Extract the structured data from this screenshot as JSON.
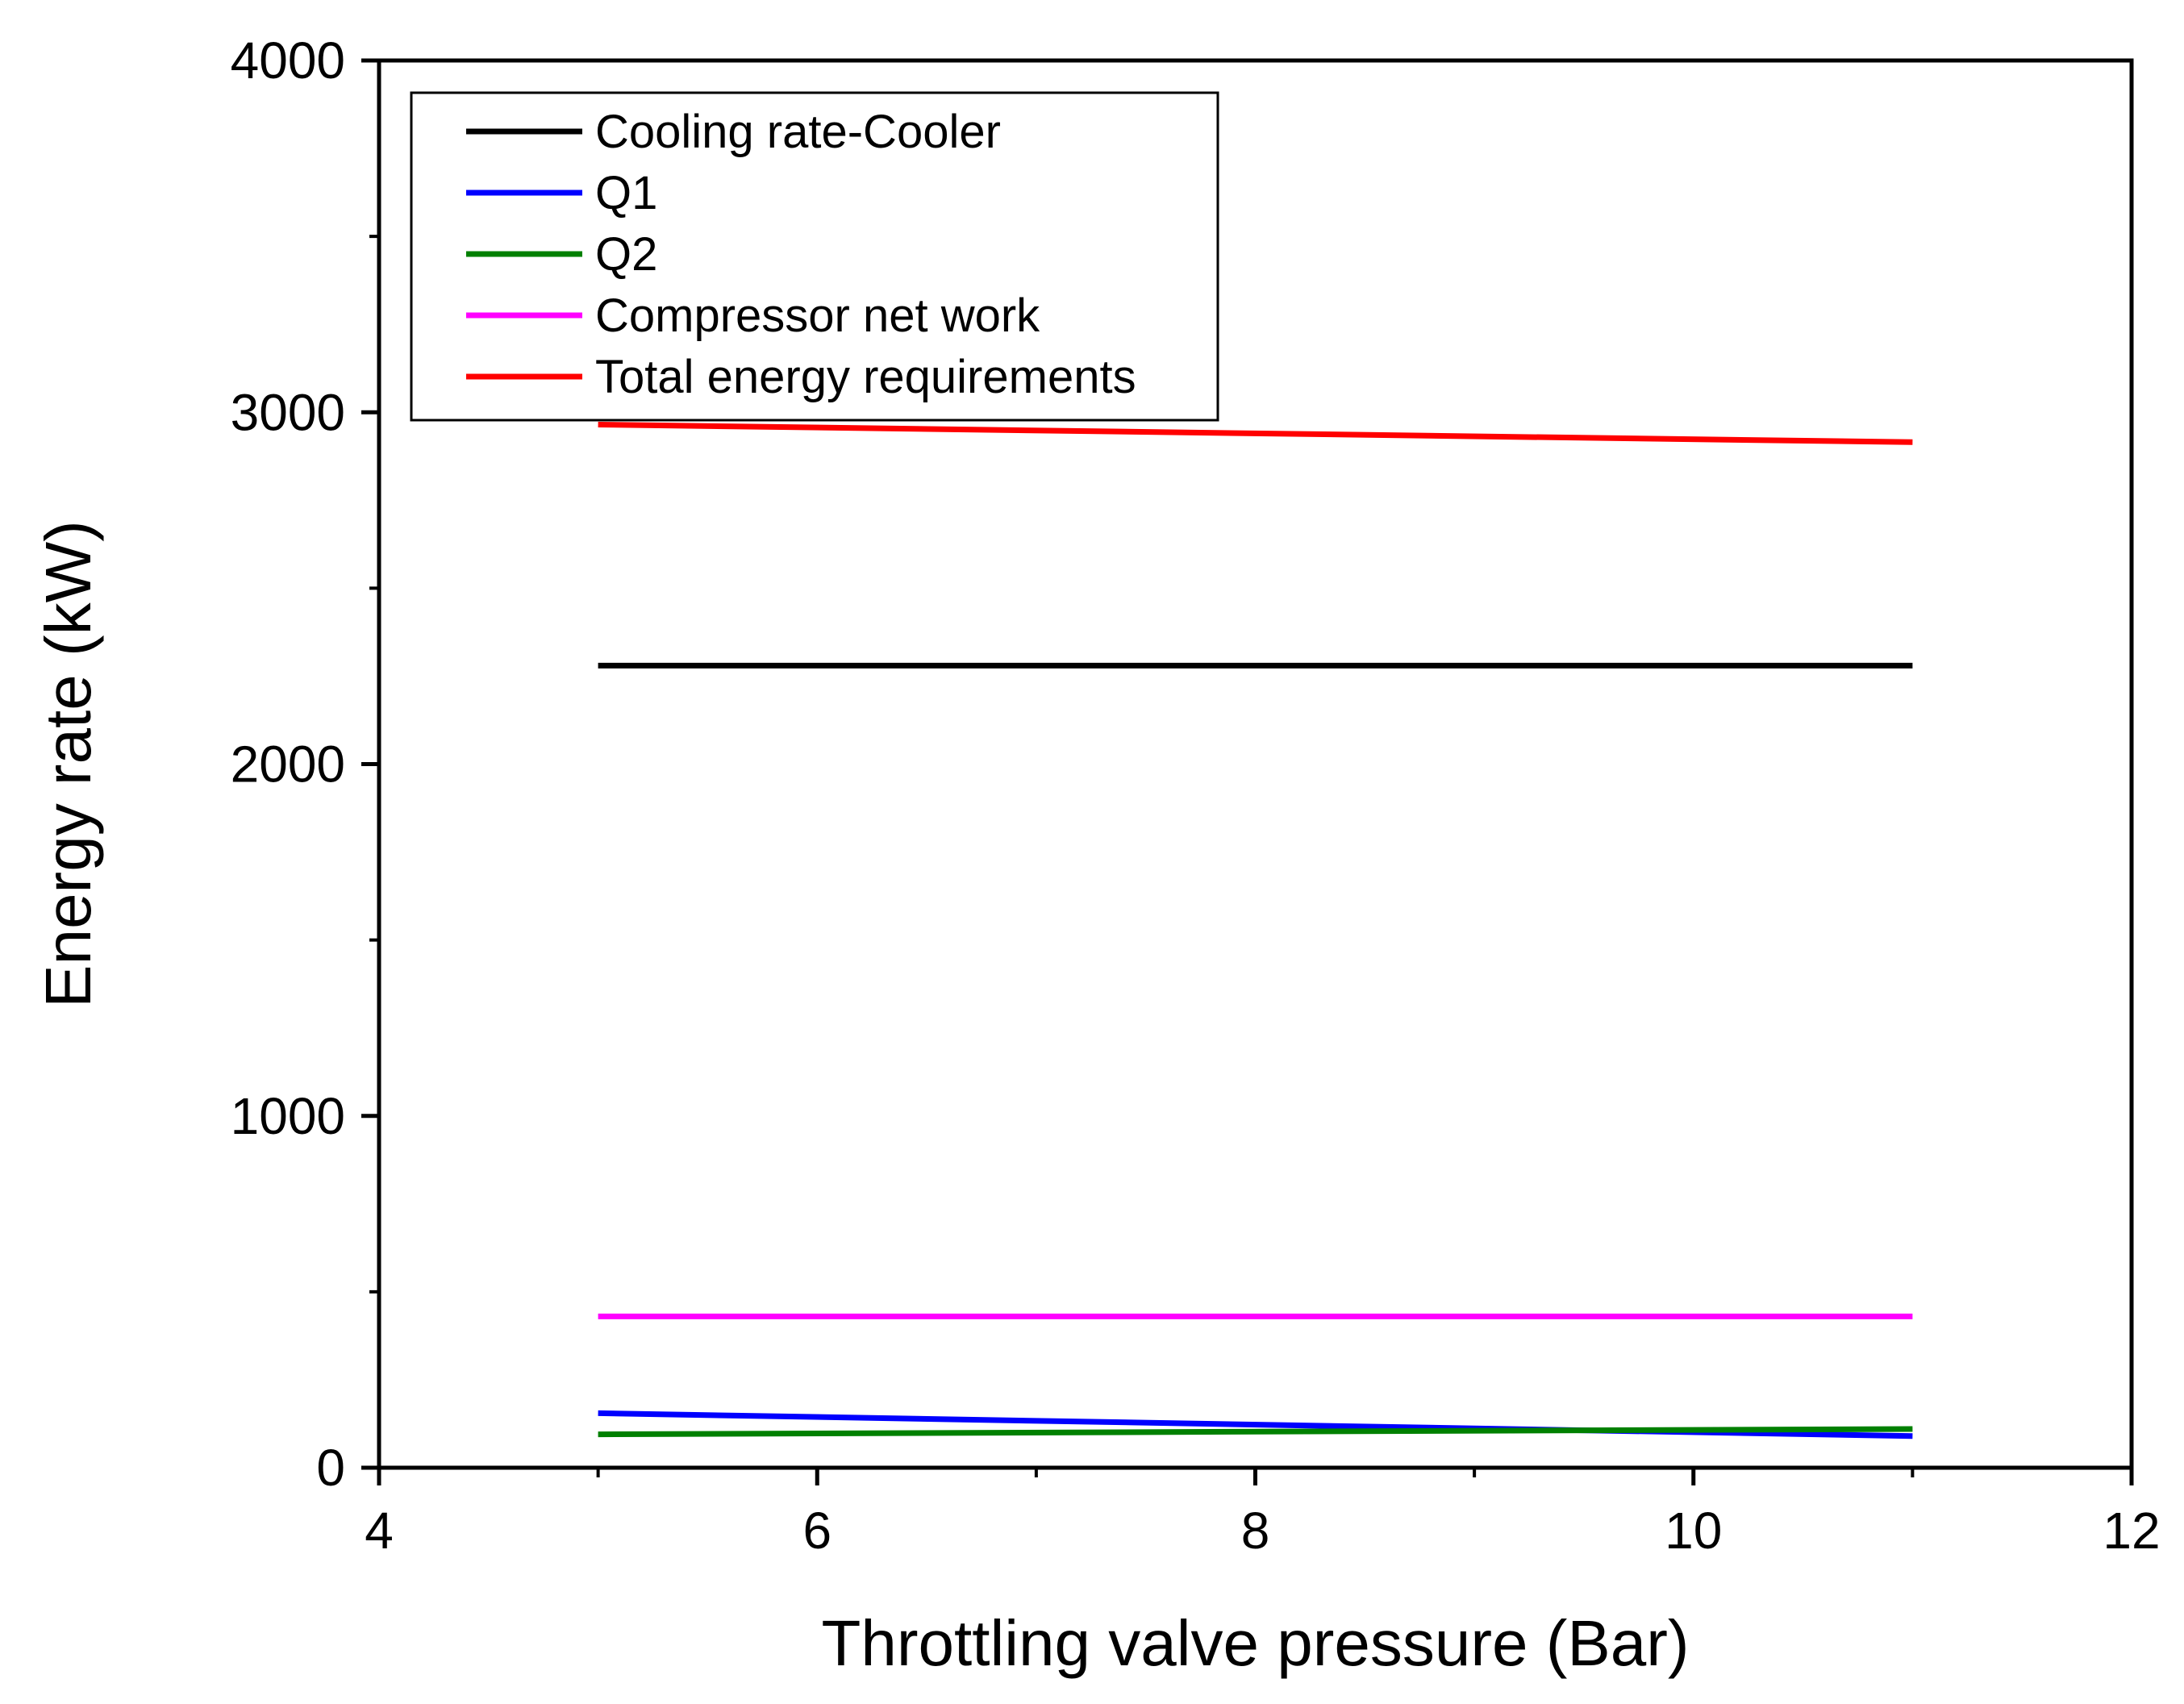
{
  "chart_data": {
    "type": "line",
    "title": "",
    "xlabel": "Throttling valve pressure (Bar)",
    "ylabel": "Energy rate (kW)",
    "xlim": [
      4,
      12
    ],
    "ylim": [
      0,
      4000
    ],
    "x_ticks": [
      4,
      6,
      8,
      10,
      12
    ],
    "x_tick_labels": [
      "4",
      "6",
      "8",
      "10",
      "12"
    ],
    "y_ticks": [
      0,
      1000,
      2000,
      3000,
      4000
    ],
    "y_tick_labels": [
      "0",
      "1000",
      "2000",
      "3000",
      "4000"
    ],
    "x_minor_ticks": [
      5,
      7,
      9,
      11
    ],
    "y_minor_ticks": [
      500,
      1500,
      2500,
      3500
    ],
    "grid": false,
    "legend_position": "top-left",
    "series": [
      {
        "name": "Cooling rate-Cooler",
        "color": "#000000",
        "x": [
          5,
          11
        ],
        "y": [
          2280,
          2280
        ]
      },
      {
        "name": "Q1",
        "color": "#0000ff",
        "x": [
          5,
          11
        ],
        "y": [
          155,
          90
        ]
      },
      {
        "name": "Q2",
        "color": "#008000",
        "x": [
          5,
          11
        ],
        "y": [
          95,
          110
        ]
      },
      {
        "name": "Compressor net work",
        "color": "#ff00ff",
        "x": [
          5,
          11
        ],
        "y": [
          430,
          430
        ]
      },
      {
        "name": "Total energy requirements",
        "color": "#ff0000",
        "x": [
          5,
          11
        ],
        "y": [
          2965,
          2915
        ]
      }
    ]
  }
}
